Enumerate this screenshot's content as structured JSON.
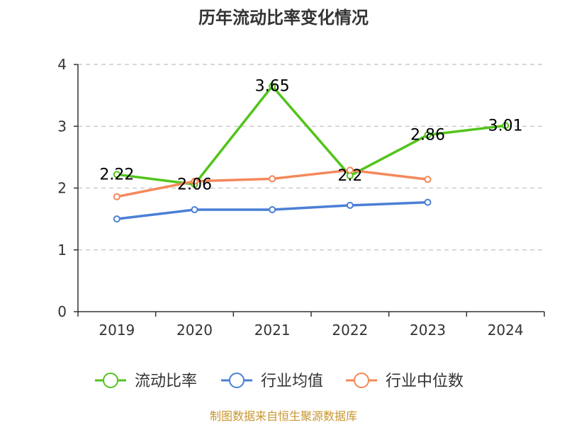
{
  "chart_data": {
    "type": "line",
    "title": "历年流动比率变化情况",
    "categories": [
      "2019",
      "2020",
      "2021",
      "2022",
      "2023",
      "2024"
    ],
    "ylim": [
      0,
      4
    ],
    "yticks": [
      "0",
      "1",
      "2",
      "3",
      "4"
    ],
    "grid": true,
    "legend_position": "bottom",
    "series": [
      {
        "name": "流动比率",
        "color": "#52c41a",
        "values": [
          2.22,
          2.06,
          3.65,
          2.2,
          2.86,
          3.01
        ],
        "labels": [
          "2.22",
          "2.06",
          "3.65",
          "2.2",
          "2.86",
          "3.01"
        ]
      },
      {
        "name": "行业均值",
        "color": "#4a7fd6",
        "values": [
          1.5,
          1.65,
          1.65,
          1.72,
          1.77,
          null
        ]
      },
      {
        "name": "行业中位数",
        "color": "#f4885a",
        "values": [
          1.86,
          2.11,
          2.15,
          2.29,
          2.14,
          null
        ]
      }
    ]
  },
  "source": {
    "text": "制图数据来自恒生聚源数据库",
    "color": "#c8962e"
  }
}
